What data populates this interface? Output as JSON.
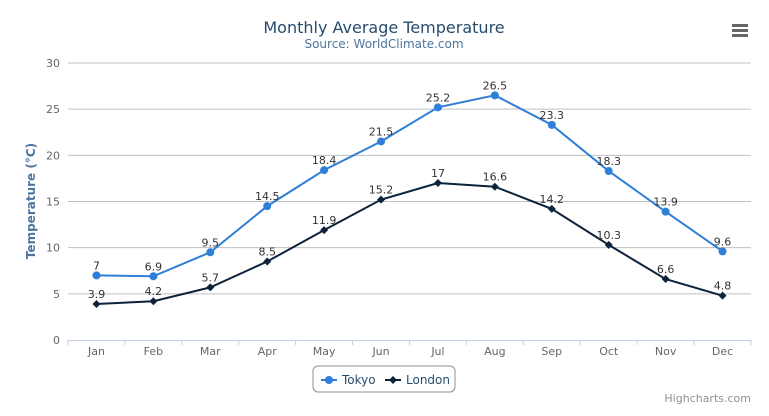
{
  "chart_data": {
    "type": "line",
    "title": "Monthly Average Temperature",
    "subtitle": "Source: WorldClimate.com",
    "xlabel": "",
    "ylabel": "Temperature (°C)",
    "ylim": [
      0,
      30
    ],
    "yticks": [
      0,
      5,
      10,
      15,
      20,
      25,
      30
    ],
    "grid": true,
    "legend_placement": "bottom-center",
    "categories": [
      "Jan",
      "Feb",
      "Mar",
      "Apr",
      "May",
      "Jun",
      "Jul",
      "Aug",
      "Sep",
      "Oct",
      "Nov",
      "Dec"
    ],
    "series": [
      {
        "name": "Tokyo",
        "color": "#2f7ed8",
        "marker": "circle",
        "values": [
          7.0,
          6.9,
          9.5,
          14.5,
          18.4,
          21.5,
          25.2,
          26.5,
          23.3,
          18.3,
          13.9,
          9.6
        ]
      },
      {
        "name": "London",
        "color": "#0d233a",
        "marker": "diamond",
        "values": [
          3.9,
          4.2,
          5.7,
          8.5,
          11.9,
          15.2,
          17.0,
          16.6,
          14.2,
          10.3,
          6.6,
          4.8
        ]
      }
    ],
    "credits": "Highcharts.com"
  },
  "menu_icon": "hamburger-menu-icon",
  "colors": {
    "title": "#274b6d",
    "subtitle": "#4d759e",
    "grid": "#c0c0c0",
    "axis_labels": "#666666"
  }
}
